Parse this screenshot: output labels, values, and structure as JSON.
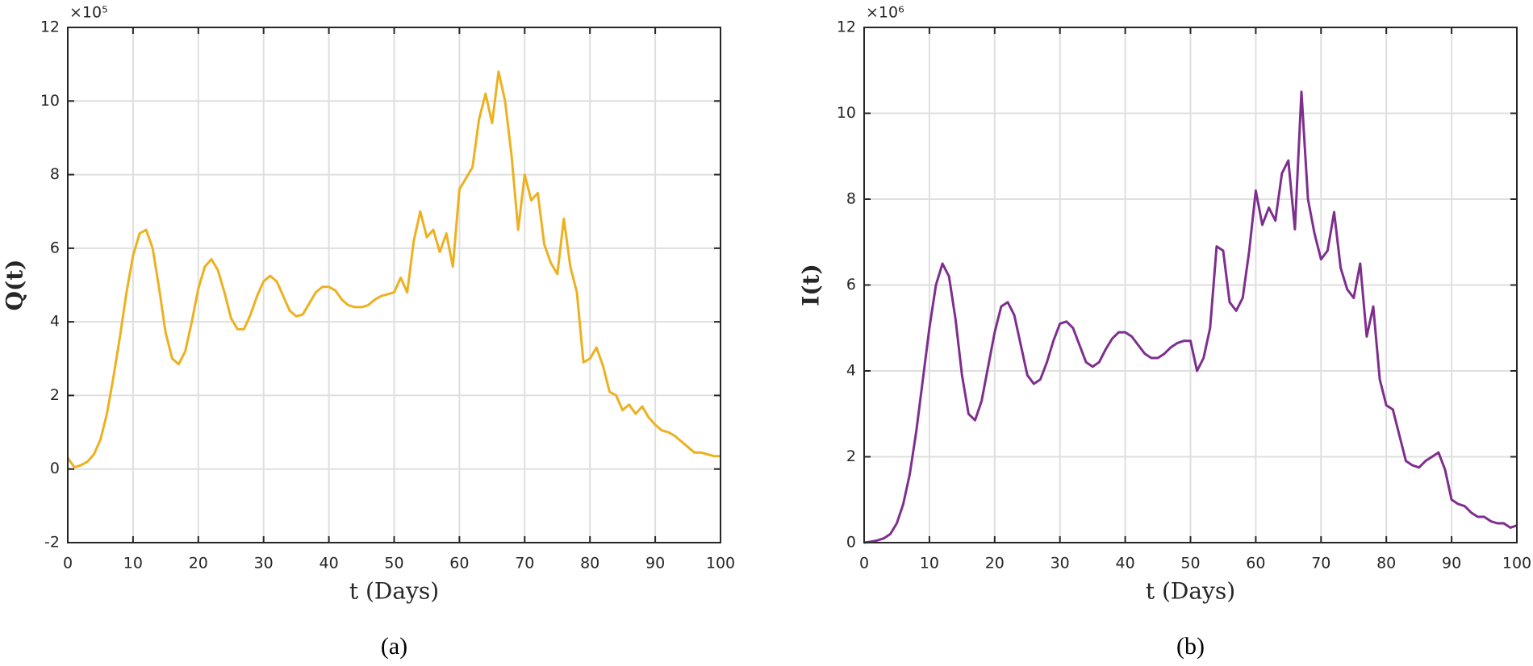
{
  "chart_data": [
    {
      "type": "line",
      "ylabel": "Q(t)",
      "xlabel": "t (Days)",
      "y_multiplier": "×10⁵",
      "caption": "(a)",
      "color": "#EDB120",
      "grid": true,
      "xlim": [
        0,
        100
      ],
      "xticks": [
        0,
        10,
        20,
        30,
        40,
        50,
        60,
        70,
        80,
        90,
        100
      ],
      "ylim": [
        -2,
        12
      ],
      "yticks": [
        -2,
        0,
        2,
        4,
        6,
        8,
        10,
        12
      ],
      "x": [
        0,
        1,
        2,
        3,
        4,
        5,
        6,
        7,
        8,
        9,
        10,
        11,
        12,
        13,
        14,
        15,
        16,
        17,
        18,
        19,
        20,
        21,
        22,
        23,
        24,
        25,
        26,
        27,
        28,
        29,
        30,
        31,
        32,
        33,
        34,
        35,
        36,
        37,
        38,
        39,
        40,
        41,
        42,
        43,
        44,
        45,
        46,
        47,
        48,
        49,
        50,
        51,
        52,
        53,
        54,
        55,
        56,
        57,
        58,
        59,
        60,
        61,
        62,
        63,
        64,
        65,
        66,
        67,
        68,
        69,
        70,
        71,
        72,
        73,
        74,
        75,
        76,
        77,
        78,
        79,
        80,
        81,
        82,
        83,
        84,
        85,
        86,
        87,
        88,
        89,
        90,
        91,
        92,
        93,
        94,
        95,
        96,
        97,
        98,
        99,
        100
      ],
      "values": [
        0.3,
        0.05,
        0.1,
        0.2,
        0.4,
        0.8,
        1.5,
        2.5,
        3.6,
        4.8,
        5.8,
        6.4,
        6.5,
        6.0,
        4.9,
        3.7,
        3.0,
        2.85,
        3.2,
        4.0,
        4.9,
        5.5,
        5.7,
        5.4,
        4.8,
        4.1,
        3.8,
        3.8,
        4.2,
        4.7,
        5.1,
        5.25,
        5.1,
        4.7,
        4.3,
        4.15,
        4.2,
        4.5,
        4.8,
        4.95,
        4.95,
        4.85,
        4.6,
        4.45,
        4.4,
        4.4,
        4.45,
        4.6,
        4.7,
        4.75,
        4.8,
        5.2,
        4.8,
        6.2,
        7.0,
        6.3,
        6.5,
        5.9,
        6.4,
        5.5,
        7.6,
        7.9,
        8.2,
        9.5,
        10.2,
        9.4,
        10.8,
        10.0,
        8.5,
        6.5,
        8.0,
        7.3,
        7.5,
        6.1,
        5.6,
        5.3,
        6.8,
        5.5,
        4.8,
        2.9,
        3.0,
        3.3,
        2.8,
        2.1,
        2.0,
        1.6,
        1.75,
        1.5,
        1.7,
        1.4,
        1.2,
        1.05,
        1.0,
        0.9,
        0.75,
        0.6,
        0.45,
        0.45,
        0.4,
        0.35,
        0.35
      ]
    },
    {
      "type": "line",
      "ylabel": "I(t)",
      "xlabel": "t (Days)",
      "y_multiplier": "×10⁶",
      "caption": "(b)",
      "color": "#7E2F8E",
      "grid": true,
      "xlim": [
        0,
        100
      ],
      "xticks": [
        0,
        10,
        20,
        30,
        40,
        50,
        60,
        70,
        80,
        90,
        100
      ],
      "ylim": [
        0,
        12
      ],
      "yticks": [
        0,
        2,
        4,
        6,
        8,
        10,
        12
      ],
      "x": [
        0,
        1,
        2,
        3,
        4,
        5,
        6,
        7,
        8,
        9,
        10,
        11,
        12,
        13,
        14,
        15,
        16,
        17,
        18,
        19,
        20,
        21,
        22,
        23,
        24,
        25,
        26,
        27,
        28,
        29,
        30,
        31,
        32,
        33,
        34,
        35,
        36,
        37,
        38,
        39,
        40,
        41,
        42,
        43,
        44,
        45,
        46,
        47,
        48,
        49,
        50,
        51,
        52,
        53,
        54,
        55,
        56,
        57,
        58,
        59,
        60,
        61,
        62,
        63,
        64,
        65,
        66,
        67,
        68,
        69,
        70,
        71,
        72,
        73,
        74,
        75,
        76,
        77,
        78,
        79,
        80,
        81,
        82,
        83,
        84,
        85,
        86,
        87,
        88,
        89,
        90,
        91,
        92,
        93,
        94,
        95,
        96,
        97,
        98,
        99,
        100
      ],
      "values": [
        0,
        0.02,
        0.05,
        0.1,
        0.2,
        0.45,
        0.9,
        1.6,
        2.6,
        3.8,
        5.0,
        6.0,
        6.5,
        6.2,
        5.2,
        3.9,
        3.0,
        2.85,
        3.3,
        4.1,
        4.9,
        5.5,
        5.6,
        5.3,
        4.6,
        3.9,
        3.7,
        3.8,
        4.2,
        4.7,
        5.1,
        5.15,
        5.0,
        4.6,
        4.2,
        4.1,
        4.2,
        4.5,
        4.75,
        4.9,
        4.9,
        4.8,
        4.6,
        4.4,
        4.3,
        4.3,
        4.4,
        4.55,
        4.65,
        4.7,
        4.7,
        4.0,
        4.3,
        5.0,
        6.9,
        6.8,
        5.6,
        5.4,
        5.7,
        6.8,
        8.2,
        7.4,
        7.8,
        7.5,
        8.6,
        8.9,
        7.3,
        10.5,
        8.0,
        7.2,
        6.6,
        6.8,
        7.7,
        6.4,
        5.9,
        5.7,
        6.5,
        4.8,
        5.5,
        3.8,
        3.2,
        3.1,
        2.5,
        1.9,
        1.8,
        1.75,
        1.9,
        2.0,
        2.1,
        1.7,
        1.0,
        0.9,
        0.85,
        0.7,
        0.6,
        0.6,
        0.5,
        0.45,
        0.45,
        0.35,
        0.4
      ]
    }
  ]
}
